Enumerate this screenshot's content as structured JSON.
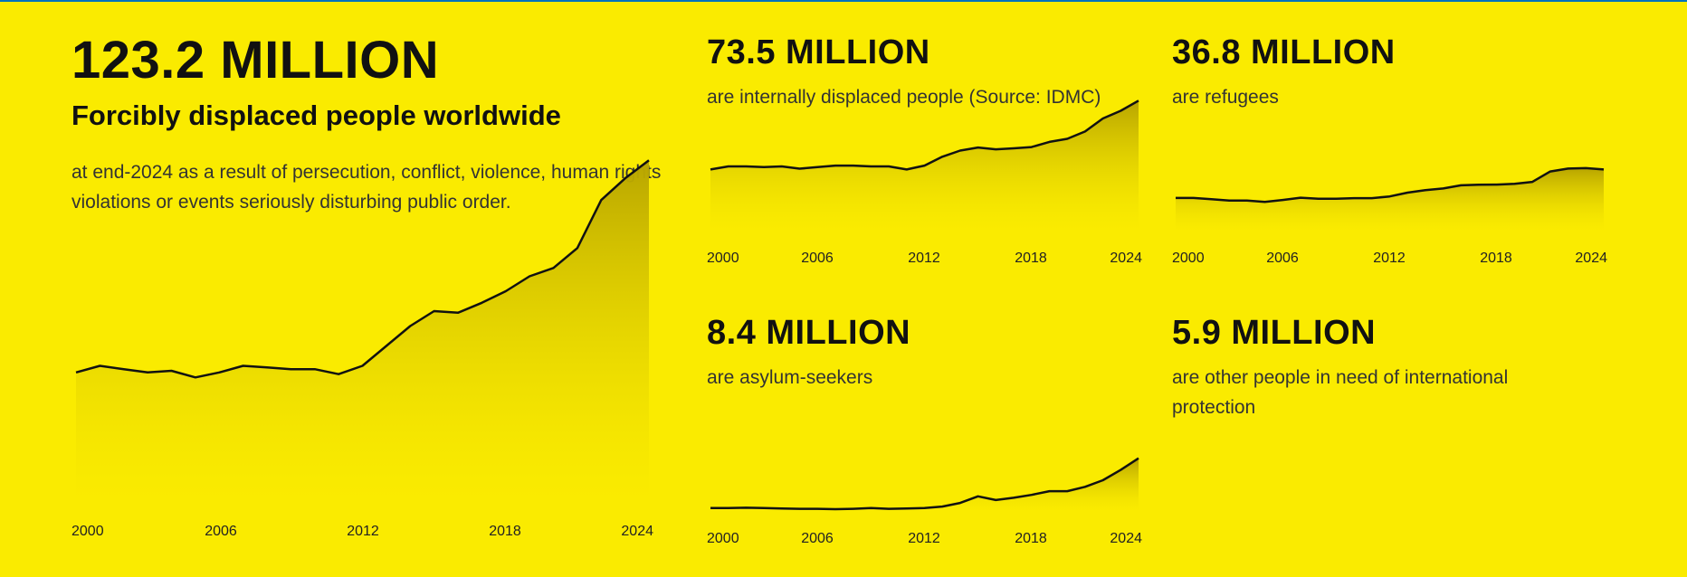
{
  "colors": {
    "background": "#FAEB00",
    "top_border": "#0072BC",
    "line": "#111111",
    "area": "#B8A500"
  },
  "main": {
    "value": "123.2 MILLION",
    "heading": "Forcibly displaced people worldwide",
    "description": "at end-2024 as a result of persecution, conflict, violence, human rights violations or events seriously disturbing public order."
  },
  "panels": {
    "idp": {
      "value": "73.5 MILLION",
      "description": "are internally displaced people (Source: IDMC)"
    },
    "refugees": {
      "value": "36.8 MILLION",
      "description": "are refugees"
    },
    "asylum": {
      "value": "8.4 MILLION",
      "description": "are asylum-seekers"
    },
    "other": {
      "value": "5.9 MILLION",
      "description": "are other people in need of international protection"
    }
  },
  "chart_data": [
    {
      "id": "total",
      "type": "area",
      "x": [
        2000,
        2001,
        2002,
        2003,
        2004,
        2005,
        2006,
        2007,
        2008,
        2009,
        2010,
        2011,
        2012,
        2013,
        2014,
        2015,
        2016,
        2017,
        2018,
        2019,
        2020,
        2021,
        2022,
        2023,
        2024
      ],
      "values": [
        38.5,
        40.5,
        39.5,
        38.5,
        39.0,
        37.0,
        38.5,
        40.5,
        40.0,
        39.5,
        39.5,
        38.0,
        40.5,
        46.5,
        52.5,
        57.0,
        56.5,
        59.5,
        63.0,
        67.5,
        70.0,
        76.0,
        90.5,
        97.0,
        102.5
      ],
      "tick_labels": [
        "2000",
        "2006",
        "2012",
        "2018",
        "2024"
      ],
      "ylim": [
        0,
        135
      ],
      "grid": false
    },
    {
      "id": "idp",
      "type": "area",
      "x": [
        2000,
        2001,
        2002,
        2003,
        2004,
        2005,
        2006,
        2007,
        2008,
        2009,
        2010,
        2011,
        2012,
        2013,
        2014,
        2015,
        2016,
        2017,
        2018,
        2019,
        2020,
        2021,
        2022,
        2023,
        2024
      ],
      "values": [
        24.0,
        25.2,
        25.2,
        24.9,
        25.2,
        24.3,
        24.9,
        25.5,
        25.5,
        25.2,
        25.2,
        24.0,
        25.5,
        29.0,
        31.4,
        32.6,
        31.9,
        32.3,
        32.8,
        34.8,
        36.0,
        38.9,
        44.0,
        47.0,
        51.0
      ],
      "tick_labels": [
        "2000",
        "2006",
        "2012",
        "2018",
        "2024"
      ],
      "ylim": [
        0,
        110
      ],
      "grid": false
    },
    {
      "id": "refugees",
      "type": "area",
      "x": [
        2000,
        2001,
        2002,
        2003,
        2004,
        2005,
        2006,
        2007,
        2008,
        2009,
        2010,
        2011,
        2012,
        2013,
        2014,
        2015,
        2016,
        2017,
        2018,
        2019,
        2020,
        2021,
        2022,
        2023,
        2024
      ],
      "values": [
        20.6,
        20.6,
        19.8,
        19.0,
        19.0,
        18.2,
        19.4,
        20.8,
        20.2,
        20.2,
        20.5,
        20.5,
        21.6,
        24.0,
        25.6,
        26.6,
        28.6,
        29.0,
        29.1,
        29.6,
        30.8,
        37.4,
        39.2,
        39.5,
        38.6
      ],
      "tick_labels": [
        "2000",
        "2006",
        "2012",
        "2018",
        "2024"
      ],
      "ylim": [
        0,
        60
      ],
      "grid": false
    },
    {
      "id": "asylum",
      "type": "area",
      "x": [
        2000,
        2001,
        2002,
        2003,
        2004,
        2005,
        2006,
        2007,
        2008,
        2009,
        2010,
        2011,
        2012,
        2013,
        2014,
        2015,
        2016,
        2017,
        2018,
        2019,
        2020,
        2021,
        2022,
        2023,
        2024
      ],
      "values": [
        1.2,
        1.2,
        1.35,
        1.2,
        1.05,
        0.9,
        0.9,
        0.75,
        0.9,
        1.2,
        0.9,
        1.05,
        1.2,
        1.8,
        3.3,
        6.0,
        4.5,
        5.4,
        6.6,
        8.1,
        8.1,
        9.9,
        12.6,
        16.8,
        21.6
      ],
      "tick_labels": [
        "2000",
        "2006",
        "2012",
        "2018",
        "2024"
      ],
      "ylim": [
        0,
        50
      ],
      "grid": false
    }
  ]
}
